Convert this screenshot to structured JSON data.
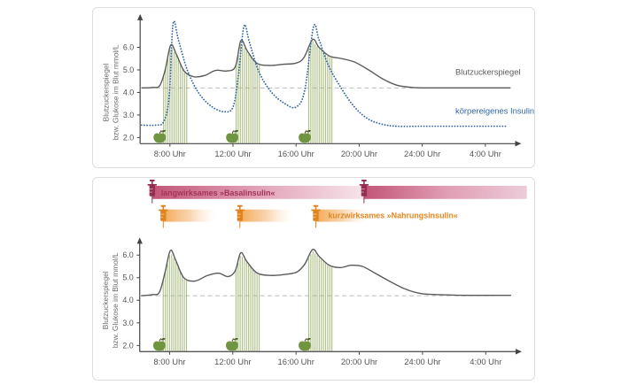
{
  "colors": {
    "glucose_line": "#5a5a5a",
    "insulin_line": "#2f66a5",
    "baseline_dash": "#bcbcbc",
    "band_hatch": "#97b065",
    "apple_body": "#6f9540",
    "apple_leaf": "#49672c",
    "apple_stem": "#6b4a2f",
    "axis": "#444444",
    "tick_text": "#555555",
    "ylabel_text": "#6e6e6e",
    "basal_main": "#a23459",
    "basal_syringe": "#932e52",
    "basal_gradient": [
      "#c25577",
      "#e2a2b8",
      "#f6e4ea"
    ],
    "basal_gradient2": [
      "#c25577",
      "#e09cb3",
      "#edccd9"
    ],
    "bolus_main": "#e2861f",
    "bolus_syringe": "#e0831f",
    "bolus_gradient": [
      "#f2a54b",
      "#f6c896",
      "#fdeedd"
    ]
  },
  "chart_data": [
    {
      "name": "glucose-with-endogenous-insulin",
      "type": "line",
      "x_unit": "hour-of-day",
      "x_range": [
        6.2,
        30.3
      ],
      "y_range": [
        2.0,
        6.0
      ],
      "ylabel_lines": [
        "Blutzuckerspiegel",
        "bzw. Glukose im Blut mmol/L"
      ],
      "y_ticks": [
        {
          "v": 6.0,
          "label": "6.0"
        },
        {
          "v": 5.0,
          "label": "5.0"
        },
        {
          "v": 4.0,
          "label": "4.0"
        },
        {
          "v": 3.0,
          "label": "3.0"
        },
        {
          "v": 2.0,
          "label": "2.0"
        }
      ],
      "x_ticks": [
        {
          "t": 8,
          "label": "8:00 Uhr"
        },
        {
          "t": 12,
          "label": "12:00 Uhr"
        },
        {
          "t": 16,
          "label": "16:00 Uhr"
        },
        {
          "t": 20,
          "label": "20:00 Uhr"
        },
        {
          "t": 24,
          "label": "24:00 Uhr"
        },
        {
          "t": 28,
          "label": "4:00 Uhr"
        }
      ],
      "baseline_value": 4.2,
      "baseline_end_t": 28.8,
      "meals": [
        {
          "apple_t": 7.35,
          "band": [
            7.6,
            9.1
          ]
        },
        {
          "apple_t": 11.95,
          "band": [
            12.2,
            13.7
          ]
        },
        {
          "apple_t": 16.55,
          "band": [
            16.8,
            18.3
          ]
        }
      ],
      "series": [
        {
          "key": "glucose",
          "name": "Blutzuckerspiegel",
          "style": "solid",
          "points": [
            [
              6.2,
              4.2
            ],
            [
              6.9,
              4.22
            ],
            [
              7.35,
              4.3
            ],
            [
              7.7,
              5.0
            ],
            [
              8.05,
              6.1
            ],
            [
              8.4,
              5.7
            ],
            [
              8.9,
              4.95
            ],
            [
              9.5,
              4.7
            ],
            [
              10.2,
              4.75
            ],
            [
              10.9,
              4.98
            ],
            [
              11.6,
              4.95
            ],
            [
              12.15,
              5.15
            ],
            [
              12.5,
              6.3
            ],
            [
              12.9,
              5.85
            ],
            [
              13.5,
              5.3
            ],
            [
              14.3,
              5.2
            ],
            [
              15.2,
              5.25
            ],
            [
              16.0,
              5.3
            ],
            [
              16.5,
              5.55
            ],
            [
              17.05,
              6.35
            ],
            [
              17.45,
              6.0
            ],
            [
              18.1,
              5.62
            ],
            [
              18.9,
              5.5
            ],
            [
              19.7,
              5.35
            ],
            [
              20.6,
              5.0
            ],
            [
              21.5,
              4.6
            ],
            [
              22.4,
              4.32
            ],
            [
              23.4,
              4.22
            ],
            [
              24.6,
              4.2
            ],
            [
              26.2,
              4.2
            ],
            [
              28.0,
              4.2
            ],
            [
              29.6,
              4.2
            ]
          ]
        },
        {
          "key": "insulin",
          "name": "körpereigenes Insulin",
          "style": "dotted",
          "points": [
            [
              6.2,
              2.55
            ],
            [
              7.1,
              2.55
            ],
            [
              7.6,
              2.7
            ],
            [
              7.95,
              3.8
            ],
            [
              8.2,
              7.05
            ],
            [
              8.55,
              6.3
            ],
            [
              9.1,
              5.0
            ],
            [
              9.8,
              4.0
            ],
            [
              10.6,
              3.4
            ],
            [
              11.4,
              3.15
            ],
            [
              12.0,
              3.35
            ],
            [
              12.35,
              4.8
            ],
            [
              12.7,
              6.95
            ],
            [
              13.05,
              6.2
            ],
            [
              13.65,
              4.9
            ],
            [
              14.45,
              4.0
            ],
            [
              15.3,
              3.5
            ],
            [
              16.0,
              3.35
            ],
            [
              16.55,
              4.1
            ],
            [
              17.1,
              6.9
            ],
            [
              17.45,
              6.35
            ],
            [
              18.05,
              5.2
            ],
            [
              18.85,
              4.2
            ],
            [
              19.65,
              3.4
            ],
            [
              20.5,
              2.85
            ],
            [
              21.4,
              2.6
            ],
            [
              22.4,
              2.5
            ],
            [
              24.2,
              2.5
            ],
            [
              26.5,
              2.5
            ],
            [
              29.4,
              2.5
            ]
          ]
        }
      ],
      "annotations": [
        {
          "text": "Blutzuckerspiegel",
          "key": "glucose",
          "t": 26.1,
          "v": 4.78
        },
        {
          "text": "körpereigenes Insulin",
          "key": "insulin",
          "t": 26.1,
          "v": 3.05
        }
      ]
    },
    {
      "name": "glucose-with-insulin-therapy",
      "type": "line",
      "x_unit": "hour-of-day",
      "x_range": [
        6.2,
        30.3
      ],
      "y_range": [
        2.0,
        6.0
      ],
      "ylabel_lines": [
        "Blutzuckerspiegel",
        "bzw. Glukose im Blut mmol/L"
      ],
      "y_ticks": [
        {
          "v": 6.0,
          "label": "6.0"
        },
        {
          "v": 5.0,
          "label": "5.0"
        },
        {
          "v": 4.0,
          "label": "4.0"
        },
        {
          "v": 3.0,
          "label": "3.0"
        },
        {
          "v": 2.0,
          "label": "2.0"
        }
      ],
      "x_ticks": [
        {
          "t": 8,
          "label": "8:00 Uhr"
        },
        {
          "t": 12,
          "label": "12:00 Uhr"
        },
        {
          "t": 16,
          "label": "16:00 Uhr"
        },
        {
          "t": 20,
          "label": "20:00 Uhr"
        },
        {
          "t": 24,
          "label": "24:00 Uhr"
        },
        {
          "t": 28,
          "label": "4:00 Uhr"
        }
      ],
      "baseline_value": 4.2,
      "baseline_end_t": 28.5,
      "meals": [
        {
          "apple_t": 7.35,
          "band": [
            7.6,
            9.1
          ]
        },
        {
          "apple_t": 11.95,
          "band": [
            12.2,
            13.7
          ]
        },
        {
          "apple_t": 16.55,
          "band": [
            16.8,
            18.3
          ]
        }
      ],
      "series": [
        {
          "key": "glucose",
          "name": "Blutzuckerspiegel",
          "style": "solid",
          "points": [
            [
              6.2,
              4.2
            ],
            [
              6.9,
              4.25
            ],
            [
              7.35,
              4.35
            ],
            [
              7.7,
              5.2
            ],
            [
              8.05,
              6.2
            ],
            [
              8.4,
              5.75
            ],
            [
              8.9,
              5.0
            ],
            [
              9.6,
              4.85
            ],
            [
              10.4,
              5.1
            ],
            [
              11.1,
              5.2
            ],
            [
              11.7,
              5.05
            ],
            [
              12.15,
              5.3
            ],
            [
              12.5,
              6.1
            ],
            [
              12.9,
              5.7
            ],
            [
              13.55,
              5.2
            ],
            [
              14.45,
              5.1
            ],
            [
              15.35,
              5.15
            ],
            [
              16.05,
              5.25
            ],
            [
              16.55,
              5.6
            ],
            [
              17.05,
              6.25
            ],
            [
              17.45,
              5.95
            ],
            [
              18.1,
              5.55
            ],
            [
              18.8,
              5.45
            ],
            [
              19.5,
              5.55
            ],
            [
              20.2,
              5.5
            ],
            [
              21.0,
              5.2
            ],
            [
              21.9,
              4.85
            ],
            [
              22.9,
              4.5
            ],
            [
              23.9,
              4.3
            ],
            [
              25.1,
              4.25
            ],
            [
              26.6,
              4.22
            ],
            [
              28.2,
              4.22
            ],
            [
              29.6,
              4.22
            ]
          ]
        }
      ],
      "annotations": [],
      "therapy": {
        "basal_label": "langwirksames »Basalinsulin«",
        "basal_doses_t": [
          6.9,
          20.3
        ],
        "basal_bar_end_t": 30.6,
        "bolus_label": "kurzwirksames »Nahrungsinsulin«",
        "bolus_doses_t": [
          7.6,
          12.45,
          17.25
        ],
        "bolus_bar_hours": 3.4
      }
    }
  ]
}
